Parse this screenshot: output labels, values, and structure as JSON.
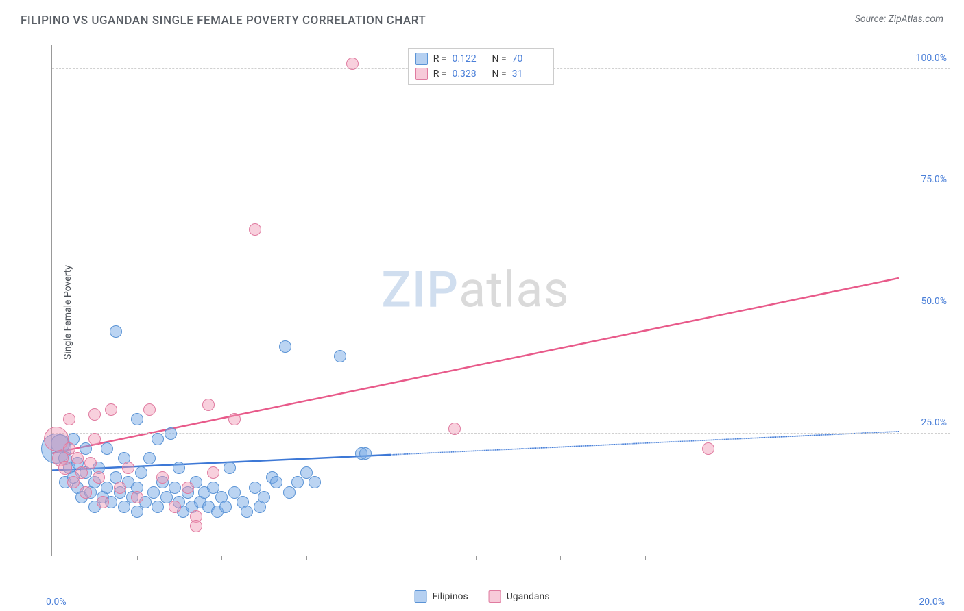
{
  "title": "FILIPINO VS UGANDAN SINGLE FEMALE POVERTY CORRELATION CHART",
  "source_label": "Source: ZipAtlas.com",
  "ylabel": "Single Female Poverty",
  "watermark": {
    "part1": "ZIP",
    "part2": "atlas"
  },
  "chart": {
    "type": "scatter",
    "background_color": "#ffffff",
    "grid_color": "#d0d0d0",
    "axis_color": "#999999",
    "xlim": [
      0,
      20
    ],
    "ylim": [
      0,
      105
    ],
    "x_axis_left_label": "0.0%",
    "x_axis_right_label": "20.0%",
    "x_tick_positions": [
      2,
      4,
      6,
      8,
      10,
      12,
      14,
      16,
      18
    ],
    "y_ticks": [
      {
        "v": 25,
        "label": "25.0%"
      },
      {
        "v": 50,
        "label": "50.0%"
      },
      {
        "v": 75,
        "label": "75.0%"
      },
      {
        "v": 100,
        "label": "100.0%"
      }
    ],
    "tick_label_color": "#4a7fd8",
    "tick_fontsize": 14,
    "marker_radius_base": 8,
    "series": [
      {
        "key": "filipinos",
        "label": "Filipinos",
        "fill": "rgba(120,170,230,0.5)",
        "stroke": "#5a93d5",
        "trend": {
          "color": "#3d78d6",
          "width": 2.5,
          "dash_after_x": 8,
          "y_at_x0": 17.5,
          "y_at_x20": 25.5
        },
        "R": "0.122",
        "N": "70",
        "points": [
          {
            "x": 0.1,
            "y": 22,
            "r": 22
          },
          {
            "x": 0.2,
            "y": 23,
            "r": 14
          },
          {
            "x": 0.3,
            "y": 20,
            "r": 10
          },
          {
            "x": 0.3,
            "y": 15,
            "r": 9
          },
          {
            "x": 0.4,
            "y": 18,
            "r": 9
          },
          {
            "x": 0.5,
            "y": 16,
            "r": 9
          },
          {
            "x": 0.6,
            "y": 19,
            "r": 9
          },
          {
            "x": 0.6,
            "y": 14,
            "r": 9
          },
          {
            "x": 0.7,
            "y": 12,
            "r": 9
          },
          {
            "x": 0.8,
            "y": 17,
            "r": 9
          },
          {
            "x": 0.9,
            "y": 13,
            "r": 9
          },
          {
            "x": 1.0,
            "y": 15,
            "r": 9
          },
          {
            "x": 1.0,
            "y": 10,
            "r": 9
          },
          {
            "x": 1.1,
            "y": 18,
            "r": 9
          },
          {
            "x": 1.2,
            "y": 12,
            "r": 9
          },
          {
            "x": 1.3,
            "y": 14,
            "r": 9
          },
          {
            "x": 1.4,
            "y": 11,
            "r": 9
          },
          {
            "x": 1.5,
            "y": 16,
            "r": 9
          },
          {
            "x": 1.5,
            "y": 46,
            "r": 9
          },
          {
            "x": 1.6,
            "y": 13,
            "r": 9
          },
          {
            "x": 1.7,
            "y": 10,
            "r": 9
          },
          {
            "x": 1.8,
            "y": 15,
            "r": 9
          },
          {
            "x": 1.9,
            "y": 12,
            "r": 9
          },
          {
            "x": 2.0,
            "y": 14,
            "r": 9
          },
          {
            "x": 2.0,
            "y": 9,
            "r": 9
          },
          {
            "x": 2.1,
            "y": 17,
            "r": 9
          },
          {
            "x": 2.2,
            "y": 11,
            "r": 9
          },
          {
            "x": 2.3,
            "y": 20,
            "r": 9
          },
          {
            "x": 2.4,
            "y": 13,
            "r": 9
          },
          {
            "x": 2.5,
            "y": 10,
            "r": 9
          },
          {
            "x": 2.6,
            "y": 15,
            "r": 9
          },
          {
            "x": 2.7,
            "y": 12,
            "r": 9
          },
          {
            "x": 2.8,
            "y": 25,
            "r": 9
          },
          {
            "x": 2.9,
            "y": 14,
            "r": 9
          },
          {
            "x": 3.0,
            "y": 11,
            "r": 9
          },
          {
            "x": 3.0,
            "y": 18,
            "r": 9
          },
          {
            "x": 3.1,
            "y": 9,
            "r": 9
          },
          {
            "x": 3.2,
            "y": 13,
            "r": 9
          },
          {
            "x": 3.3,
            "y": 10,
            "r": 9
          },
          {
            "x": 3.4,
            "y": 15,
            "r": 9
          },
          {
            "x": 3.5,
            "y": 11,
            "r": 9
          },
          {
            "x": 3.6,
            "y": 13,
            "r": 9
          },
          {
            "x": 3.7,
            "y": 10,
            "r": 9
          },
          {
            "x": 3.8,
            "y": 14,
            "r": 9
          },
          {
            "x": 3.9,
            "y": 9,
            "r": 9
          },
          {
            "x": 4.0,
            "y": 12,
            "r": 9
          },
          {
            "x": 4.1,
            "y": 10,
            "r": 9
          },
          {
            "x": 4.3,
            "y": 13,
            "r": 9
          },
          {
            "x": 4.5,
            "y": 11,
            "r": 9
          },
          {
            "x": 4.6,
            "y": 9,
            "r": 9
          },
          {
            "x": 4.8,
            "y": 14,
            "r": 9
          },
          {
            "x": 4.9,
            "y": 10,
            "r": 9
          },
          {
            "x": 5.0,
            "y": 12,
            "r": 9
          },
          {
            "x": 5.2,
            "y": 16,
            "r": 9
          },
          {
            "x": 5.3,
            "y": 15,
            "r": 9
          },
          {
            "x": 5.5,
            "y": 43,
            "r": 9
          },
          {
            "x": 5.6,
            "y": 13,
            "r": 9
          },
          {
            "x": 5.8,
            "y": 15,
            "r": 9
          },
          {
            "x": 6.0,
            "y": 17,
            "r": 9
          },
          {
            "x": 6.2,
            "y": 15,
            "r": 9
          },
          {
            "x": 6.8,
            "y": 41,
            "r": 9
          },
          {
            "x": 7.3,
            "y": 21,
            "r": 9
          },
          {
            "x": 7.4,
            "y": 21,
            "r": 9
          },
          {
            "x": 2.0,
            "y": 28,
            "r": 9
          },
          {
            "x": 2.5,
            "y": 24,
            "r": 9
          },
          {
            "x": 1.3,
            "y": 22,
            "r": 9
          },
          {
            "x": 1.7,
            "y": 20,
            "r": 9
          },
          {
            "x": 0.5,
            "y": 24,
            "r": 9
          },
          {
            "x": 0.8,
            "y": 22,
            "r": 9
          },
          {
            "x": 4.2,
            "y": 18,
            "r": 9
          }
        ]
      },
      {
        "key": "ugandans",
        "label": "Ugandans",
        "fill": "rgba(240,150,180,0.45)",
        "stroke": "#e07ba0",
        "trend": {
          "color": "#e85a8a",
          "width": 2.5,
          "dash_after_x": null,
          "y_at_x0": 21,
          "y_at_x20": 57
        },
        "R": "0.328",
        "N": "31",
        "points": [
          {
            "x": 0.1,
            "y": 24,
            "r": 18
          },
          {
            "x": 0.2,
            "y": 20,
            "r": 12
          },
          {
            "x": 0.3,
            "y": 18,
            "r": 10
          },
          {
            "x": 0.4,
            "y": 22,
            "r": 9
          },
          {
            "x": 0.5,
            "y": 15,
            "r": 9
          },
          {
            "x": 0.6,
            "y": 20,
            "r": 9
          },
          {
            "x": 0.7,
            "y": 17,
            "r": 9
          },
          {
            "x": 0.8,
            "y": 13,
            "r": 9
          },
          {
            "x": 0.9,
            "y": 19,
            "r": 9
          },
          {
            "x": 1.0,
            "y": 29,
            "r": 9
          },
          {
            "x": 1.1,
            "y": 16,
            "r": 9
          },
          {
            "x": 1.2,
            "y": 11,
            "r": 9
          },
          {
            "x": 1.4,
            "y": 30,
            "r": 9
          },
          {
            "x": 1.6,
            "y": 14,
            "r": 9
          },
          {
            "x": 1.8,
            "y": 18,
            "r": 9
          },
          {
            "x": 2.0,
            "y": 12,
            "r": 9
          },
          {
            "x": 2.3,
            "y": 30,
            "r": 9
          },
          {
            "x": 2.6,
            "y": 16,
            "r": 9
          },
          {
            "x": 2.9,
            "y": 10,
            "r": 9
          },
          {
            "x": 3.2,
            "y": 14,
            "r": 9
          },
          {
            "x": 3.4,
            "y": 8,
            "r": 9
          },
          {
            "x": 3.4,
            "y": 6,
            "r": 9
          },
          {
            "x": 3.7,
            "y": 31,
            "r": 9
          },
          {
            "x": 4.3,
            "y": 28,
            "r": 9
          },
          {
            "x": 4.8,
            "y": 67,
            "r": 9
          },
          {
            "x": 3.8,
            "y": 17,
            "r": 9
          },
          {
            "x": 7.1,
            "y": 101,
            "r": 9
          },
          {
            "x": 9.5,
            "y": 26,
            "r": 9
          },
          {
            "x": 15.5,
            "y": 22,
            "r": 9
          },
          {
            "x": 1.0,
            "y": 24,
            "r": 9
          },
          {
            "x": 0.4,
            "y": 28,
            "r": 9
          }
        ]
      }
    ],
    "legend_top": {
      "R_label": "R =",
      "N_label": "N ="
    },
    "legend_bottom_labels": [
      "Filipinos",
      "Ugandans"
    ]
  }
}
